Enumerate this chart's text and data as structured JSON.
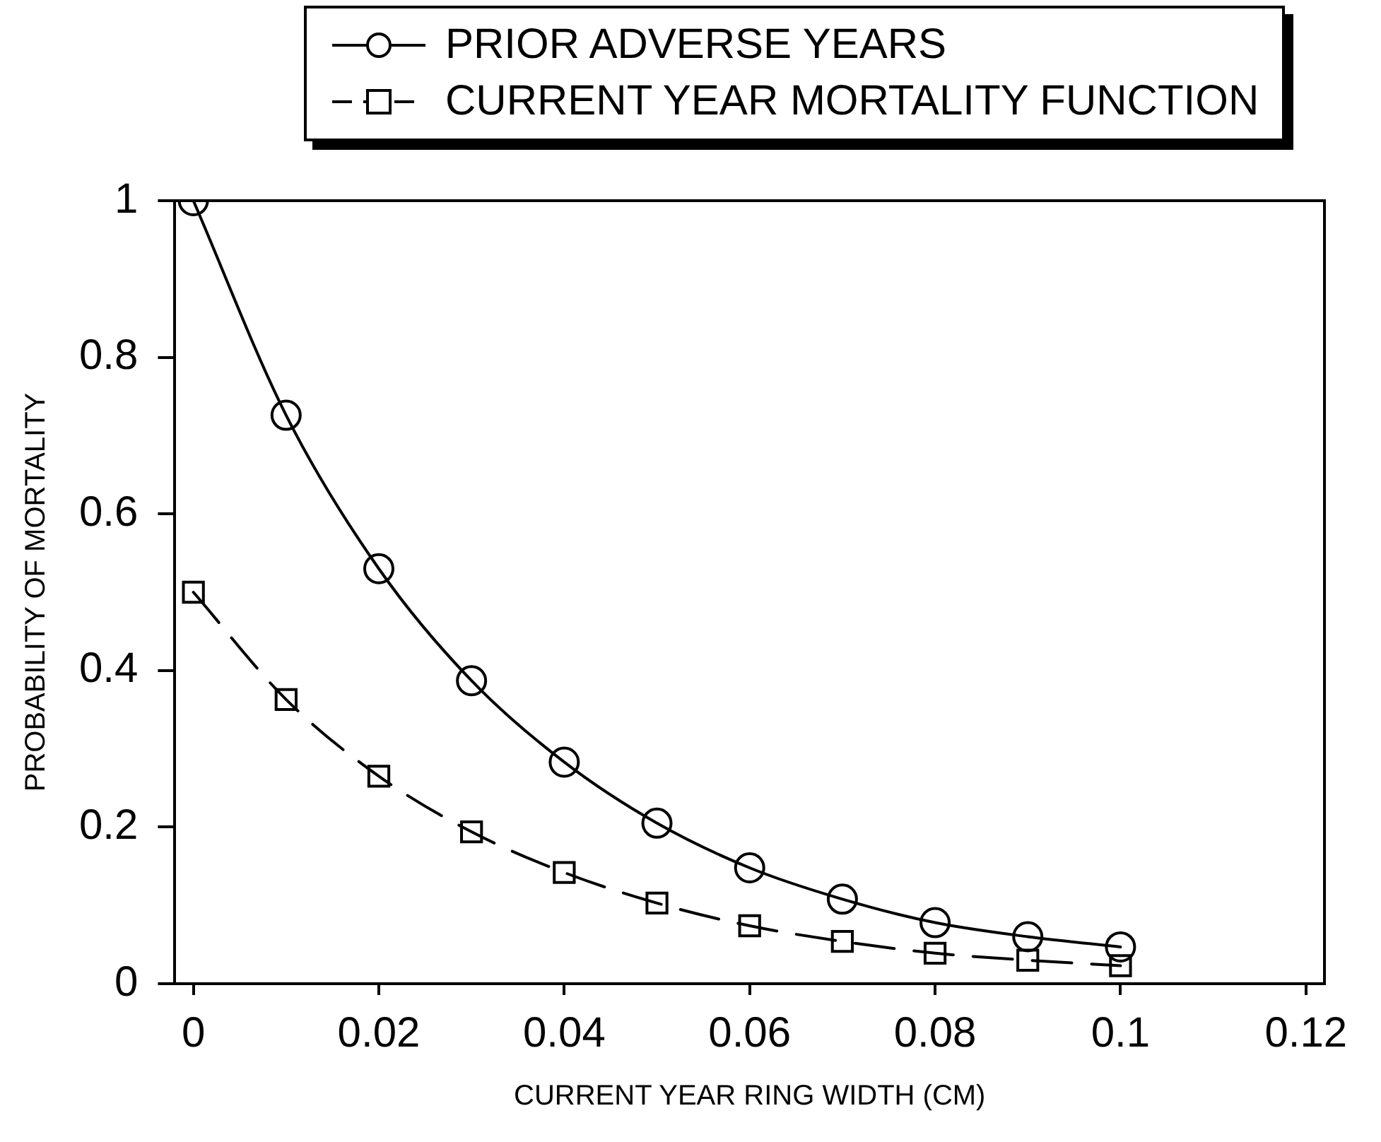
{
  "chart_data": {
    "type": "line",
    "xlabel": "CURRENT YEAR RING WIDTH (CM)",
    "ylabel": "PROBABILITY OF MORTALITY",
    "x": [
      0,
      0.01,
      0.02,
      0.03,
      0.04,
      0.05,
      0.06,
      0.07,
      0.08,
      0.09,
      0.1
    ],
    "series": [
      {
        "name": "PRIOR ADVERSE YEARS",
        "color": "#000000",
        "marker": "circle",
        "line_style": "solid",
        "values": [
          1,
          0.726,
          0.53,
          0.387,
          0.283,
          0.205,
          0.148,
          0.108,
          0.078,
          0.06,
          0.047
        ]
      },
      {
        "name": "CURRENT YEAR MORTALITY FUNCTION",
        "color": "#000000",
        "marker": "square",
        "line_style": "dashed",
        "values": [
          0.5,
          0.363,
          0.265,
          0.194,
          0.142,
          0.103,
          0.074,
          0.054,
          0.039,
          0.03,
          0.023
        ]
      }
    ],
    "xlim": [
      -0.002,
      0.122
    ],
    "xticks": [
      0,
      0.02,
      0.04,
      0.06,
      0.08,
      0.1,
      0.12
    ],
    "ylim": [
      0,
      1
    ],
    "yticks": [
      0,
      0.2,
      0.4,
      0.6,
      0.8,
      1
    ],
    "grid": false,
    "legend": "top"
  }
}
